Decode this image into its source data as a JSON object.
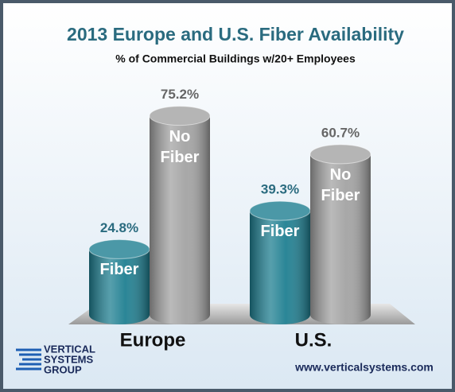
{
  "chart_data": {
    "type": "bar3d",
    "title": "2013 Europe and U.S. Fiber Availability",
    "subtitle": "% of Commercial Buildings w/20+ Employees",
    "categories": [
      "Europe",
      "U.S."
    ],
    "series": [
      {
        "name": "Fiber",
        "color": "#1f7f91",
        "values": [
          24.8,
          39.3
        ],
        "value_labels": [
          "24.8%",
          "39.3%"
        ],
        "label_color": "#2a6b7f"
      },
      {
        "name": "No Fiber",
        "color": "#a3a3a3",
        "values": [
          75.2,
          60.7
        ],
        "value_labels": [
          "75.2%",
          "60.7%"
        ],
        "label_color": "#666666"
      }
    ]
  },
  "logo": [
    "VERTICAL",
    "SYSTEMS",
    "GROUP"
  ],
  "website": "www.verticalsystems.com"
}
